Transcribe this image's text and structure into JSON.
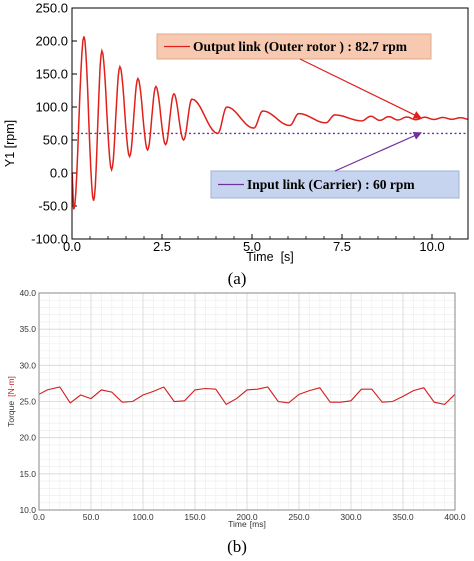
{
  "chart_data": [
    {
      "type": "line",
      "caption": "(a)",
      "xlabel": "Time",
      "xlabel_unit": "[s]",
      "ylabel": "Y1 [rpm]",
      "xlim": [
        0,
        11
      ],
      "ylim": [
        -100,
        250
      ],
      "x_ticks": [
        0,
        2.5,
        5,
        7.5,
        10
      ],
      "x_tick_labels": [
        "0.0",
        "2.5",
        "5.0",
        "7.5",
        "10.0"
      ],
      "y_ticks": [
        -100,
        -50,
        0,
        50,
        100,
        150,
        200,
        250
      ],
      "y_tick_labels": [
        "-100.0",
        "-50.0",
        "0.0",
        "50.0",
        "100.0",
        "150.0",
        "200.0",
        "250.0"
      ],
      "series": [
        {
          "name": "Output link (Outer rotor ) : 82.7 rpm",
          "color": "#e0201b",
          "style": "solid",
          "description_values": {
            "oscillation_period_s": 0.5,
            "peaks": [
              [
                0.33,
                207
              ],
              [
                0.83,
                185
              ],
              [
                1.33,
                161
              ],
              [
                1.83,
                143
              ],
              [
                2.33,
                131
              ],
              [
                2.83,
                120
              ],
              [
                3.33,
                112
              ],
              [
                4.3,
                100
              ],
              [
                5.3,
                94
              ],
              [
                6.3,
                90
              ],
              [
                7.3,
                88
              ],
              [
                8.3,
                86
              ]
            ],
            "troughs": [
              [
                0.05,
                -55
              ],
              [
                0.6,
                -42
              ],
              [
                1.1,
                5
              ],
              [
                1.6,
                25
              ],
              [
                2.1,
                35
              ],
              [
                2.6,
                43
              ],
              [
                3.1,
                50
              ],
              [
                4.05,
                60
              ],
              [
                5.05,
                68
              ],
              [
                6.05,
                72
              ],
              [
                7.05,
                76
              ],
              [
                8.05,
                79
              ]
            ],
            "final_value": 82.7
          }
        },
        {
          "name": "Input link (Carrier) : 60 rpm",
          "color": "#7030a0",
          "style": "dotted",
          "value": 60
        }
      ],
      "annotations": [
        {
          "text": "Output link (Outer rotor ) : 82.7 rpm",
          "box_color": "#f7c9b0",
          "arrow_color": "#e0201b",
          "points_to": [
            9.7,
            83
          ]
        },
        {
          "text": "Input link (Carrier) : 60 rpm",
          "box_color": "#c6d4ef",
          "arrow_color": "#7030a0",
          "points_to": [
            9.7,
            61
          ]
        }
      ]
    },
    {
      "type": "line",
      "caption": "(b)",
      "xlabel": "Time",
      "xlabel_unit": "[ms]",
      "ylabel": "Torque",
      "ylabel_unit": "[N·m]",
      "xlim": [
        0,
        400
      ],
      "ylim": [
        10,
        40
      ],
      "grid": true,
      "x_ticks": [
        0,
        50,
        100,
        150,
        200,
        250,
        300,
        350,
        400
      ],
      "x_tick_labels": [
        "0.0",
        "50.0",
        "100.0",
        "150.0",
        "200.0",
        "250.0",
        "300.0",
        "350.0",
        "400.0"
      ],
      "y_ticks": [
        10,
        15,
        20,
        25,
        30,
        35,
        40
      ],
      "y_tick_labels": [
        "10.0",
        "15.0",
        "20.0",
        "25.0",
        "30.0",
        "35.0",
        "40.0"
      ],
      "series": [
        {
          "color": "#d02020",
          "x": [
            0,
            8,
            20,
            30,
            40,
            50,
            60,
            70,
            80,
            90,
            100,
            110,
            120,
            130,
            140,
            150,
            160,
            170,
            180,
            190,
            200,
            210,
            220,
            230,
            240,
            250,
            260,
            270,
            280,
            290,
            300,
            310,
            320,
            330,
            340,
            350,
            360,
            370,
            380,
            390,
            400
          ],
          "y": [
            26.0,
            26.6,
            27.0,
            24.8,
            25.9,
            25.4,
            26.6,
            26.3,
            24.9,
            25.0,
            25.9,
            26.4,
            27.0,
            25.0,
            25.1,
            26.6,
            26.8,
            26.7,
            24.6,
            25.4,
            26.6,
            26.7,
            27.0,
            25.0,
            24.8,
            26.0,
            26.5,
            26.9,
            24.9,
            24.9,
            25.1,
            26.7,
            26.7,
            24.9,
            25.0,
            25.7,
            26.5,
            26.9,
            24.9,
            24.6,
            26.0
          ]
        }
      ]
    }
  ]
}
